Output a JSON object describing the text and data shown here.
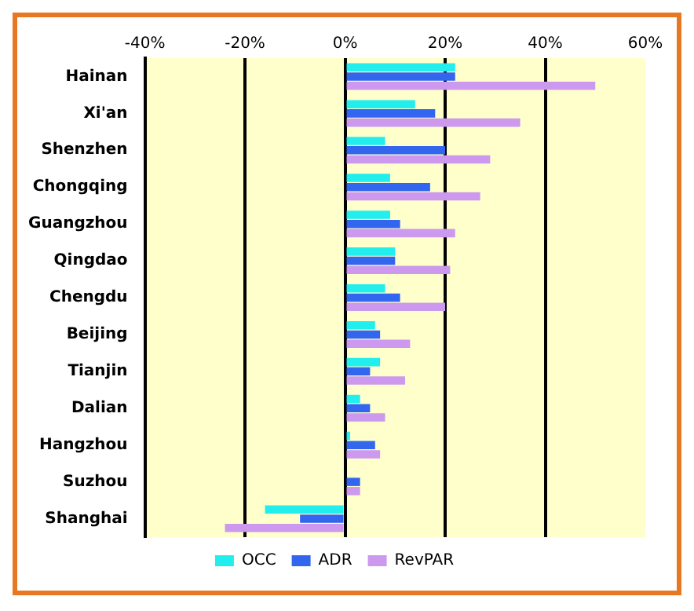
{
  "chart_data": {
    "type": "bar",
    "orientation": "horizontal",
    "categories": [
      "Hainan",
      "Xi'an",
      "Shenzhen",
      "Chongqing",
      "Guangzhou",
      "Qingdao",
      "Chengdu",
      "Beijing",
      "Tianjin",
      "Dalian",
      "Hangzhou",
      "Suzhou",
      "Shanghai"
    ],
    "series": [
      {
        "name": "OCC",
        "color": "#22eeee",
        "values": [
          22,
          14,
          8,
          9,
          9,
          10,
          8,
          6,
          7,
          3,
          1,
          0,
          -16
        ]
      },
      {
        "name": "ADR",
        "color": "#3366ee",
        "values": [
          22,
          18,
          20,
          17,
          11,
          10,
          11,
          7,
          5,
          5,
          6,
          3,
          -9
        ]
      },
      {
        "name": "RevPAR",
        "color": "#cc99ee",
        "values": [
          50,
          35,
          29,
          27,
          22,
          21,
          20,
          13,
          12,
          8,
          7,
          3,
          -24
        ]
      }
    ],
    "xlim": [
      -40,
      60
    ],
    "xticks": [
      {
        "value": -40,
        "label": "-40%"
      },
      {
        "value": -20,
        "label": "-20%"
      },
      {
        "value": 0,
        "label": "0%"
      },
      {
        "value": 20,
        "label": "20%"
      },
      {
        "value": 40,
        "label": "40%"
      },
      {
        "value": 60,
        "label": "60%"
      }
    ],
    "grid": "x",
    "legend": "bottom"
  }
}
